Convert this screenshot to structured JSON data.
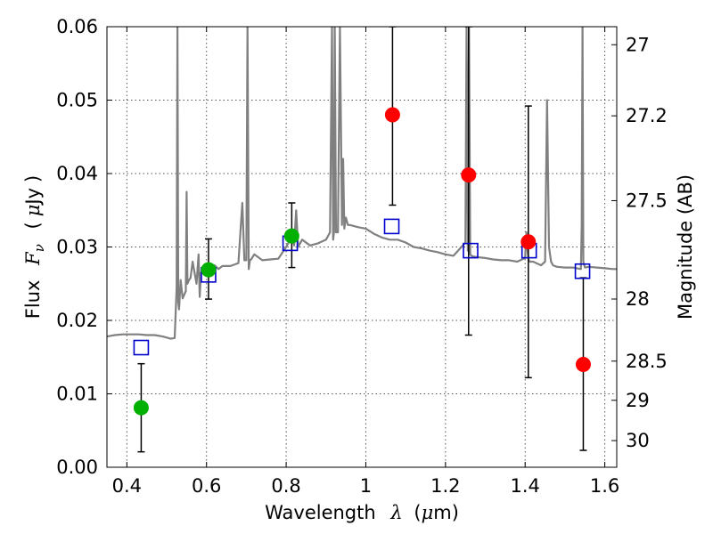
{
  "chart_data": {
    "type": "scatter",
    "xlabel": {
      "prefix": "Wavelength",
      "symbol": "λ",
      "units_open": "(",
      "units_mu": "μ",
      "units_rest": "m)"
    },
    "ylabel": {
      "prefix": "Flux",
      "symbol_main": "F",
      "symbol_sub": "ν",
      "units_open": "(",
      "units_mu": "μ",
      "units_rest": "Jy",
      "units_close": ")"
    },
    "y2label": "Magnitude (AB)",
    "xlim": [
      0.35,
      1.63
    ],
    "ylim": [
      0.0,
      0.06
    ],
    "grid": true,
    "x_ticks": [
      {
        "value": 0.4,
        "label": "0.4"
      },
      {
        "value": 0.6,
        "label": "0.6"
      },
      {
        "value": 0.8,
        "label": "0.8"
      },
      {
        "value": 1.0,
        "label": "1"
      },
      {
        "value": 1.2,
        "label": "1.2"
      },
      {
        "value": 1.4,
        "label": "1.4"
      },
      {
        "value": 1.6,
        "label": "1.6"
      }
    ],
    "y_ticks": [
      {
        "value": 0.0,
        "label": "0.00"
      },
      {
        "value": 0.01,
        "label": "0.01"
      },
      {
        "value": 0.02,
        "label": "0.02"
      },
      {
        "value": 0.03,
        "label": "0.03"
      },
      {
        "value": 0.04,
        "label": "0.04"
      },
      {
        "value": 0.05,
        "label": "0.05"
      },
      {
        "value": 0.06,
        "label": "0.06"
      }
    ],
    "mag_ticks": [
      {
        "mag": 27,
        "label": "27"
      },
      {
        "mag": 27.2,
        "label": "27.2"
      },
      {
        "mag": 27.5,
        "label": "27.5"
      },
      {
        "mag": 28,
        "label": "28"
      },
      {
        "mag": 28.5,
        "label": "28.5"
      },
      {
        "mag": 29,
        "label": "29"
      },
      {
        "mag": 30,
        "label": "30"
      }
    ],
    "series": [
      {
        "marker": "line",
        "color": "#808080",
        "x": [
          0.35,
          0.37,
          0.39,
          0.41,
          0.43,
          0.45,
          0.47,
          0.49,
          0.51,
          0.52,
          0.525,
          0.527,
          0.529,
          0.531,
          0.535,
          0.54,
          0.548,
          0.55,
          0.552,
          0.556,
          0.56,
          0.565,
          0.575,
          0.58,
          0.583,
          0.586,
          0.595,
          0.61,
          0.62,
          0.63,
          0.64,
          0.66,
          0.68,
          0.69,
          0.695,
          0.7,
          0.703,
          0.706,
          0.709,
          0.712,
          0.72,
          0.74,
          0.76,
          0.78,
          0.8,
          0.81,
          0.815,
          0.82,
          0.825,
          0.83,
          0.84,
          0.86,
          0.88,
          0.9,
          0.91,
          0.915,
          0.918,
          0.92,
          0.922,
          0.925,
          0.93,
          0.935,
          0.94,
          0.943,
          0.946,
          0.95,
          0.955,
          0.96,
          0.98,
          1.0,
          1.02,
          1.04,
          1.06,
          1.08,
          1.1,
          1.12,
          1.14,
          1.16,
          1.18,
          1.2,
          1.22,
          1.24,
          1.25,
          1.253,
          1.256,
          1.259,
          1.262,
          1.265,
          1.27,
          1.28,
          1.3,
          1.32,
          1.34,
          1.36,
          1.38,
          1.4,
          1.403,
          1.406,
          1.409,
          1.412,
          1.42,
          1.44,
          1.45,
          1.455,
          1.46,
          1.465,
          1.47,
          1.48,
          1.5,
          1.52,
          1.54,
          1.542,
          1.544,
          1.546,
          1.55,
          1.56,
          1.58,
          1.6,
          1.62,
          1.63
        ],
        "y": [
          0.0178,
          0.018,
          0.0181,
          0.0181,
          0.0181,
          0.018,
          0.018,
          0.0178,
          0.0175,
          0.0176,
          0.0245,
          0.06,
          0.0225,
          0.0215,
          0.0255,
          0.023,
          0.024,
          0.0375,
          0.025,
          0.0255,
          0.0258,
          0.028,
          0.025,
          0.029,
          0.0232,
          0.0265,
          0.0268,
          0.0265,
          0.0275,
          0.027,
          0.0274,
          0.0274,
          0.0278,
          0.036,
          0.0282,
          0.0282,
          0.06,
          0.027,
          0.0282,
          0.0283,
          0.029,
          0.0282,
          0.0283,
          0.0284,
          0.03,
          0.031,
          0.0315,
          0.0302,
          0.035,
          0.03,
          0.031,
          0.0302,
          0.0305,
          0.031,
          0.032,
          0.06,
          0.031,
          0.032,
          0.06,
          0.032,
          0.032,
          0.06,
          0.033,
          0.042,
          0.0325,
          0.034,
          0.033,
          0.033,
          0.0327,
          0.0325,
          0.0318,
          0.0313,
          0.031,
          0.031,
          0.0306,
          0.03,
          0.0298,
          0.0295,
          0.0293,
          0.029,
          0.0288,
          0.03,
          0.0306,
          0.06,
          0.0295,
          0.06,
          0.029,
          0.0288,
          0.0287,
          0.0286,
          0.0285,
          0.0283,
          0.0282,
          0.0282,
          0.028,
          0.0285,
          0.032,
          0.0295,
          0.0282,
          0.028,
          0.028,
          0.0275,
          0.028,
          0.05,
          0.03,
          0.028,
          0.0275,
          0.0273,
          0.0272,
          0.0272,
          0.027,
          0.033,
          0.06,
          0.028,
          0.0272,
          0.0273,
          0.0272,
          0.0271,
          0.027,
          0.027
        ]
      },
      {
        "marker": "open-square",
        "color": "#0000cc",
        "x": [
          0.436,
          0.605,
          0.81,
          1.065,
          1.263,
          1.41,
          1.544
        ],
        "y": [
          0.0163,
          0.0262,
          0.0305,
          0.0328,
          0.0295,
          0.0295,
          0.0267
        ]
      },
      {
        "marker": "filled-circle",
        "color": "#00b000",
        "x": [
          0.436,
          0.605,
          0.814
        ],
        "y": [
          0.0081,
          0.0269,
          0.0315
        ],
        "yerr_low": [
          0.0021,
          0.0229,
          0.0272
        ],
        "yerr_high": [
          0.0141,
          0.0311,
          0.036
        ]
      },
      {
        "marker": "filled-circle",
        "color": "#ff0000",
        "x": [
          1.067,
          1.258,
          1.408,
          1.546
        ],
        "y": [
          0.048,
          0.0398,
          0.0307,
          0.014
        ],
        "yerr_low": [
          0.0357,
          0.018,
          0.0122,
          0.0023
        ],
        "yerr_high": [
          0.06,
          0.06,
          0.0492,
          0.0258
        ]
      }
    ]
  }
}
